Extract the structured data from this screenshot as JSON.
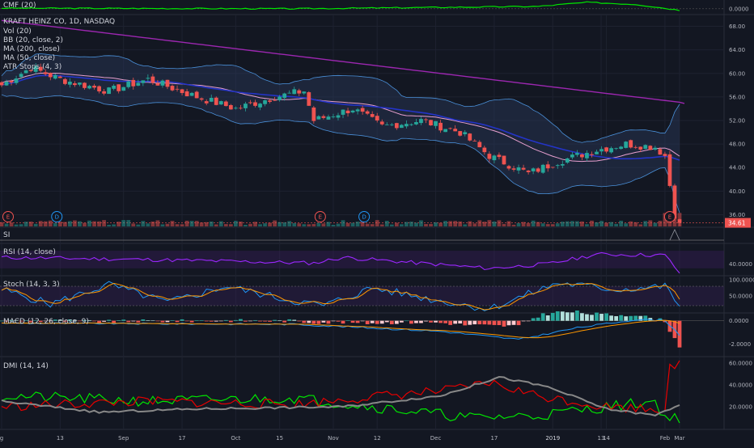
{
  "symbol_title": "KRAFT HEINZ CO, 1D, NASDAQ",
  "indicator_labels": {
    "cmf": "CMF (20)",
    "vol": "Vol (20)",
    "bb": "BB (20, close, 2)",
    "ma200": "MA (200, close)",
    "ma50": "MA (50, close)",
    "atr": "ATR Stops (4, 3)",
    "si": "SI",
    "rsi": "RSI (14, close)",
    "stoch": "Stoch (14, 3, 3)",
    "macd": "MACD (12, 26, close, 9)",
    "dmi": "DMI (14, 14)"
  },
  "price_badge": "34.61",
  "event_markers": [
    {
      "letter": "E",
      "date_index": 0
    },
    {
      "letter": "D",
      "date_index": 10
    },
    {
      "letter": "E",
      "date_index": 64
    },
    {
      "letter": "D",
      "date_index": 73
    },
    {
      "letter": "E",
      "date_index": 137
    }
  ],
  "colors": {
    "background": "#131722",
    "up": "#26a69a",
    "down": "#ef5350",
    "ma200": "#9c27b0",
    "ma50": "#1a237e",
    "bb_band": "#4a90d9",
    "rsi_line": "#9c27ff",
    "stoch_k": "#2196f3",
    "stoch_d": "#ff9800",
    "dmi_plus": "#00e600",
    "dmi_minus": "#e60000",
    "adx": "#888888",
    "cmf": "#00e600"
  },
  "chart_data": [
    {
      "type": "candlestick",
      "title": "KRAFT HEINZ CO, 1D, NASDAQ",
      "x_ticks": [
        "g",
        "13",
        "Sep",
        "17",
        "Oct",
        "15",
        "Nov",
        "12",
        "Dec",
        "17",
        "2019",
        "14",
        "Feb",
        "13",
        "Mar"
      ],
      "y_ticks": [
        36.0,
        40.0,
        44.0,
        48.0,
        52.0,
        56.0,
        60.0,
        64.0,
        68.0
      ],
      "ylim": [
        34.0,
        70.0
      ],
      "last_price": 34.61,
      "grid": true
    },
    {
      "type": "line",
      "name": "CMF (20)",
      "y_ticks": [
        0.0
      ],
      "ylim": [
        -0.2,
        0.3
      ]
    },
    {
      "type": "line",
      "name": "RSI (14, close)",
      "y_ticks": [
        40.0
      ],
      "ylim": [
        15,
        85
      ]
    },
    {
      "type": "line",
      "name": "Stoch (14, 3, 3)",
      "y_ticks": [
        100.0,
        50.0
      ],
      "ylim": [
        0,
        110
      ]
    },
    {
      "type": "bar",
      "name": "MACD (12, 26, close, 9)",
      "y_ticks": [
        0.0,
        -2.0
      ],
      "ylim": [
        -3.0,
        0.6
      ]
    },
    {
      "type": "line",
      "name": "DMI (14, 14)",
      "y_ticks": [
        60.0,
        40.0,
        20.0
      ],
      "ylim": [
        0,
        65
      ]
    }
  ]
}
